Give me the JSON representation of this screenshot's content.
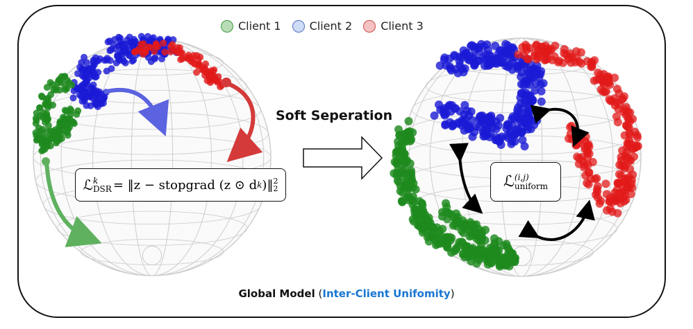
{
  "legend": [
    {
      "label": "Client 1",
      "fill": "#b9dcb6",
      "stroke": "#3f9a3f"
    },
    {
      "label": "Client 2",
      "fill": "#cfdcf6",
      "stroke": "#4f6fc2"
    },
    {
      "label": "Client 3",
      "fill": "#f4c3c1",
      "stroke": "#cf4a4a"
    }
  ],
  "colors": {
    "client1": "#1f8a1f",
    "client2": "#1a1ad6",
    "client3": "#e11919",
    "arrow_blue": "#5b63e0",
    "arrow_red": "#d43a3a",
    "arrow_green": "#5fb15f",
    "accent_text": "#1976d2"
  },
  "left_formula": {
    "lhs_main": "ℒ",
    "lhs_sup": "k",
    "lhs_sub": "DSR",
    "rhs_main": " = ‖z − stopgrad (z ⊙ d",
    "rhs_sub_k": "k",
    "rhs_close": ")‖",
    "rhs_sup": "2",
    "rhs_sub": "2"
  },
  "right_formula": {
    "main": "ℒ",
    "sup": "(i,j)",
    "sub": "uniform"
  },
  "step_label": "Soft Seperation",
  "caption": {
    "bold": "Global Model",
    "open": " (",
    "highlight": "Inter-Client Unifomity",
    "close": ")"
  }
}
